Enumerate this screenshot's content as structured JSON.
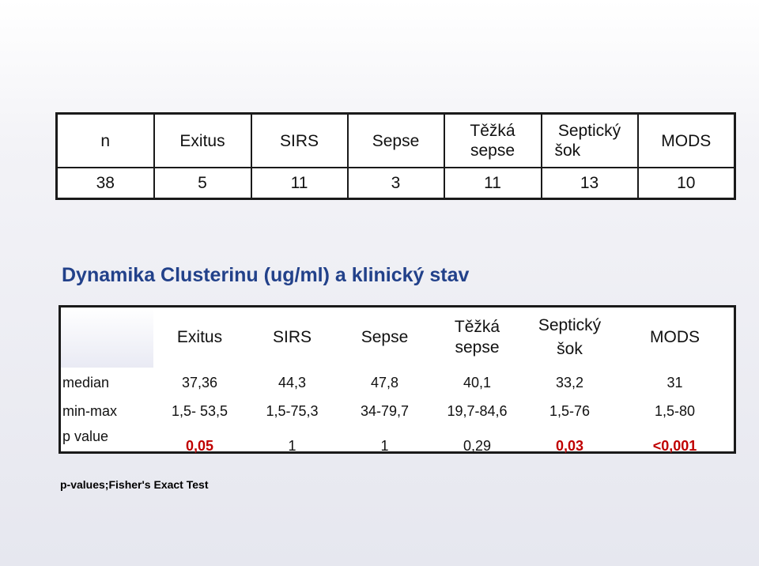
{
  "table1": {
    "headers": [
      "n",
      "Exitus",
      "SIRS",
      "Sepse",
      "Těžká",
      "sepse",
      "Septický",
      "šok",
      "MODS"
    ],
    "values": [
      "38",
      "5",
      "11",
      "3",
      "11",
      "13",
      "10"
    ]
  },
  "title": "Dynamika Clusterinu (ug/ml) a klinický stav",
  "table2": {
    "headers": [
      "Exitus",
      "SIRS",
      "Sepse",
      "Těžká",
      "sepse",
      "Septický",
      "šok",
      "MODS"
    ],
    "rows": {
      "median": {
        "label": "median",
        "values": [
          "37,36",
          "44,3",
          "47,8",
          "40,1",
          "33,2",
          "31"
        ]
      },
      "minmax": {
        "label": "min-max",
        "values": [
          "1,5- 53,5",
          "1,5-75,3",
          "34-79,7",
          "19,7-84,6",
          "1,5-76",
          "1,5-80"
        ]
      },
      "pvalue": {
        "label": "p value",
        "values": [
          "0,05",
          "1",
          "1",
          "0,29",
          "0,03",
          "<0,001"
        ]
      }
    },
    "significant_color": "#c00000"
  },
  "footnote": "p-values;Fisher's Exact Test",
  "colors": {
    "title": "#22418a"
  }
}
